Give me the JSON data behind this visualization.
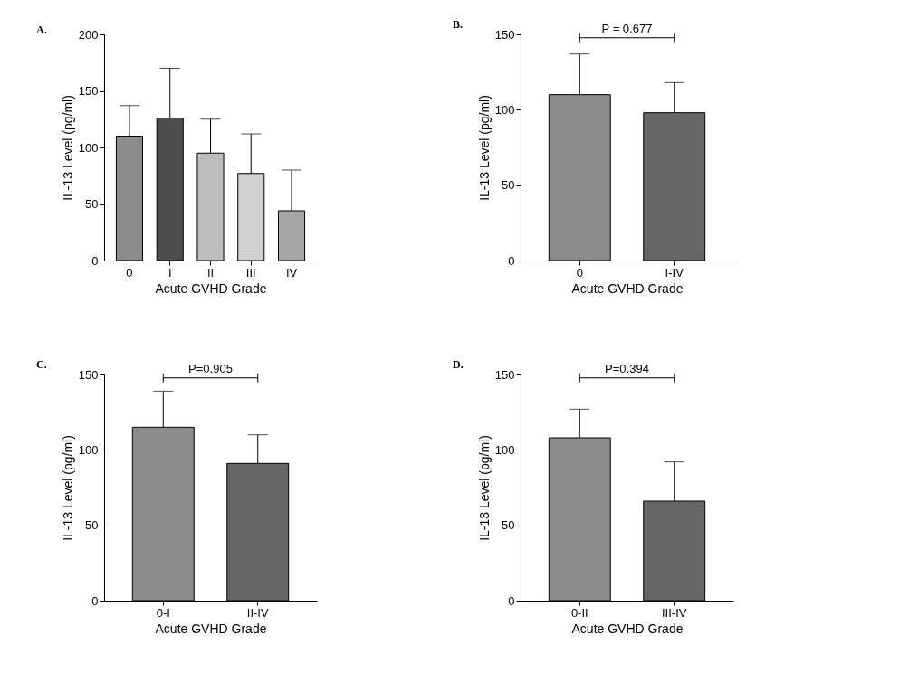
{
  "chart_data": [
    {
      "type": "bar",
      "title": "A.",
      "xlabel": "Acute GVHD Grade",
      "ylabel": "IL-13 Level (pg/ml)",
      "categories": [
        "0",
        "I",
        "II",
        "III",
        "IV"
      ],
      "values": [
        110,
        126,
        95,
        77,
        44
      ],
      "errors": [
        [
          110,
          137
        ],
        [
          126,
          170
        ],
        [
          95,
          125
        ],
        [
          77,
          112
        ],
        [
          44,
          80
        ]
      ],
      "colors": [
        "#8c8c8c",
        "#4d4d4d",
        "#bdbdbd",
        "#d0d0d0",
        "#a6a6a6"
      ],
      "ylim": [
        0,
        200
      ],
      "yticks": [
        0,
        50,
        100,
        150,
        200
      ],
      "legend": false,
      "grid": false
    },
    {
      "type": "bar",
      "title": "B.",
      "xlabel": "Acute GVHD Grade",
      "ylabel": "IL-13 Level (pg/ml)",
      "categories": [
        "0",
        "I-IV"
      ],
      "values": [
        110,
        98
      ],
      "errors": [
        [
          110,
          137
        ],
        [
          98,
          118
        ]
      ],
      "colors": [
        "#8c8c8c",
        "#666666"
      ],
      "ylim": [
        0,
        150
      ],
      "yticks": [
        0,
        50,
        100,
        150
      ],
      "annotations": [
        "P = 0.677"
      ],
      "legend": false,
      "grid": false
    },
    {
      "type": "bar",
      "title": "C.",
      "xlabel": "Acute GVHD Grade",
      "ylabel": "IL-13 Level (pg/ml)",
      "categories": [
        "0-I",
        "II-IV"
      ],
      "values": [
        115,
        91
      ],
      "errors": [
        [
          115,
          139
        ],
        [
          91,
          110
        ]
      ],
      "colors": [
        "#8c8c8c",
        "#666666"
      ],
      "ylim": [
        0,
        150
      ],
      "yticks": [
        0,
        50,
        100,
        150
      ],
      "annotations": [
        "P=0.905"
      ],
      "legend": false,
      "grid": false
    },
    {
      "type": "bar",
      "title": "D.",
      "xlabel": "Acute GVHD Grade",
      "ylabel": "IL-13 Level (pg/ml)",
      "categories": [
        "0-II",
        "III-IV"
      ],
      "values": [
        108,
        66
      ],
      "errors": [
        [
          108,
          127
        ],
        [
          66,
          92
        ]
      ],
      "colors": [
        "#8c8c8c",
        "#666666"
      ],
      "ylim": [
        0,
        150
      ],
      "yticks": [
        0,
        50,
        100,
        150
      ],
      "annotations": [
        "P=0.394"
      ],
      "legend": false,
      "grid": false
    }
  ]
}
